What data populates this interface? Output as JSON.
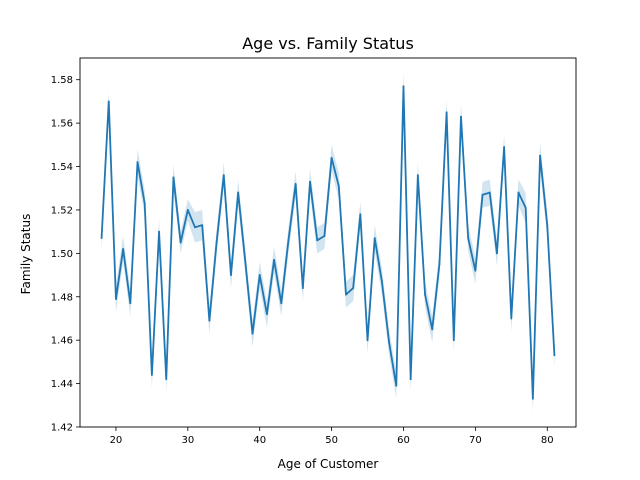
{
  "chart_data": {
    "type": "line",
    "title": "Age vs. Family Status",
    "xlabel": "Age of Customer",
    "ylabel": "Family Status",
    "xlim": [
      15,
      84
    ],
    "ylim": [
      1.42,
      1.59
    ],
    "xticks": [
      20,
      30,
      40,
      50,
      60,
      70,
      80
    ],
    "yticks": [
      1.42,
      1.44,
      1.46,
      1.48,
      1.5,
      1.52,
      1.54,
      1.56,
      1.58
    ],
    "xtick_labels": [
      "20",
      "30",
      "40",
      "50",
      "60",
      "70",
      "80"
    ],
    "ytick_labels": [
      "1.42",
      "1.44",
      "1.46",
      "1.48",
      "1.50",
      "1.52",
      "1.54",
      "1.56",
      "1.58"
    ],
    "grid": false,
    "line_color": "#1f77b4",
    "band_color": "#1f77b4",
    "series": [
      {
        "x": [
          18,
          19,
          20,
          21,
          22,
          23,
          24,
          25,
          26,
          27,
          28,
          29,
          30,
          31,
          32,
          33,
          34,
          35,
          36,
          37,
          38,
          39,
          40,
          41,
          42,
          43,
          44,
          45,
          46,
          47,
          48,
          49,
          50,
          51,
          52,
          53,
          54,
          55,
          56,
          57,
          58,
          59,
          60,
          61,
          62,
          63,
          64,
          65,
          66,
          67,
          68,
          69,
          70,
          71,
          72,
          73,
          74,
          75,
          76,
          77,
          78,
          79,
          80,
          81
        ],
        "y": [
          1.507,
          1.57,
          1.479,
          1.502,
          1.477,
          1.542,
          1.523,
          1.444,
          1.51,
          1.442,
          1.535,
          1.505,
          1.52,
          1.512,
          1.513,
          1.469,
          1.505,
          1.536,
          1.49,
          1.528,
          1.496,
          1.463,
          1.49,
          1.472,
          1.497,
          1.477,
          1.506,
          1.532,
          1.484,
          1.533,
          1.506,
          1.508,
          1.544,
          1.531,
          1.481,
          1.484,
          1.518,
          1.46,
          1.507,
          1.487,
          1.459,
          1.439,
          1.577,
          1.442,
          1.536,
          1.481,
          1.465,
          1.495,
          1.565,
          1.46,
          1.563,
          1.507,
          1.492,
          1.527,
          1.528,
          1.5,
          1.549,
          1.47,
          1.528,
          1.521,
          1.433,
          1.545,
          1.513,
          1.453
        ],
        "ci": [
          0.006,
          0.004,
          0.006,
          0.006,
          0.006,
          0.006,
          0.006,
          0.006,
          0.006,
          0.006,
          0.006,
          0.005,
          0.005,
          0.007,
          0.007,
          0.006,
          0.006,
          0.006,
          0.006,
          0.006,
          0.006,
          0.006,
          0.006,
          0.006,
          0.006,
          0.006,
          0.006,
          0.006,
          0.006,
          0.006,
          0.006,
          0.006,
          0.006,
          0.006,
          0.006,
          0.006,
          0.006,
          0.006,
          0.006,
          0.006,
          0.006,
          0.006,
          0.007,
          0.006,
          0.006,
          0.006,
          0.006,
          0.006,
          0.006,
          0.006,
          0.006,
          0.006,
          0.006,
          0.006,
          0.006,
          0.006,
          0.006,
          0.006,
          0.006,
          0.007,
          0.006,
          0.006,
          0.006,
          0.006
        ]
      }
    ]
  }
}
